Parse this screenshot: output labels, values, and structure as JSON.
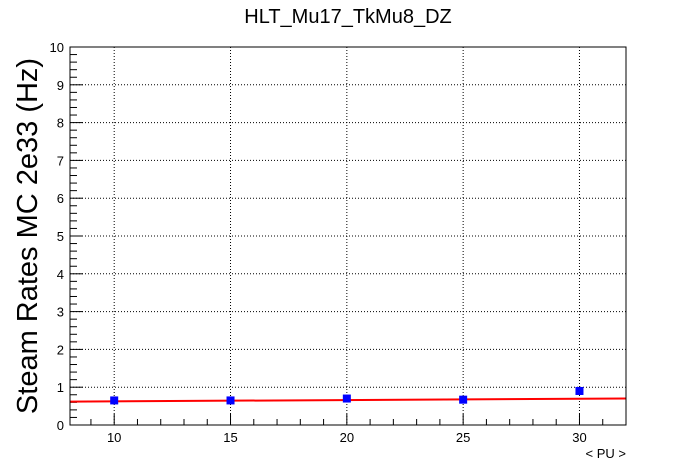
{
  "chart_data": {
    "type": "scatter",
    "title": "HLT_Mu17_TkMu8_DZ",
    "xlabel": "< PU >",
    "ylabel": "Steam Rates MC 2e33 (Hz)",
    "xlim": [
      8.1,
      32.0
    ],
    "ylim": [
      0,
      10
    ],
    "xticks": [
      10,
      15,
      20,
      25,
      30
    ],
    "xtick_labels": [
      "10",
      "15",
      "20",
      "25",
      "30"
    ],
    "yticks": [
      0,
      1,
      2,
      3,
      4,
      5,
      6,
      7,
      8,
      9,
      10
    ],
    "ytick_labels": [
      "0",
      "1",
      "2",
      "3",
      "4",
      "5",
      "6",
      "7",
      "8",
      "9",
      "10"
    ],
    "grid": true,
    "series": [
      {
        "x": [
          10,
          15,
          20,
          25,
          30
        ],
        "y": [
          0.65,
          0.65,
          0.7,
          0.67,
          0.9
        ],
        "marker": "square",
        "color": "#0000ff"
      }
    ],
    "fit": {
      "type": "line",
      "color": "#ff0000",
      "x": [
        8.1,
        32.0
      ],
      "y": [
        0.62,
        0.7
      ]
    }
  }
}
